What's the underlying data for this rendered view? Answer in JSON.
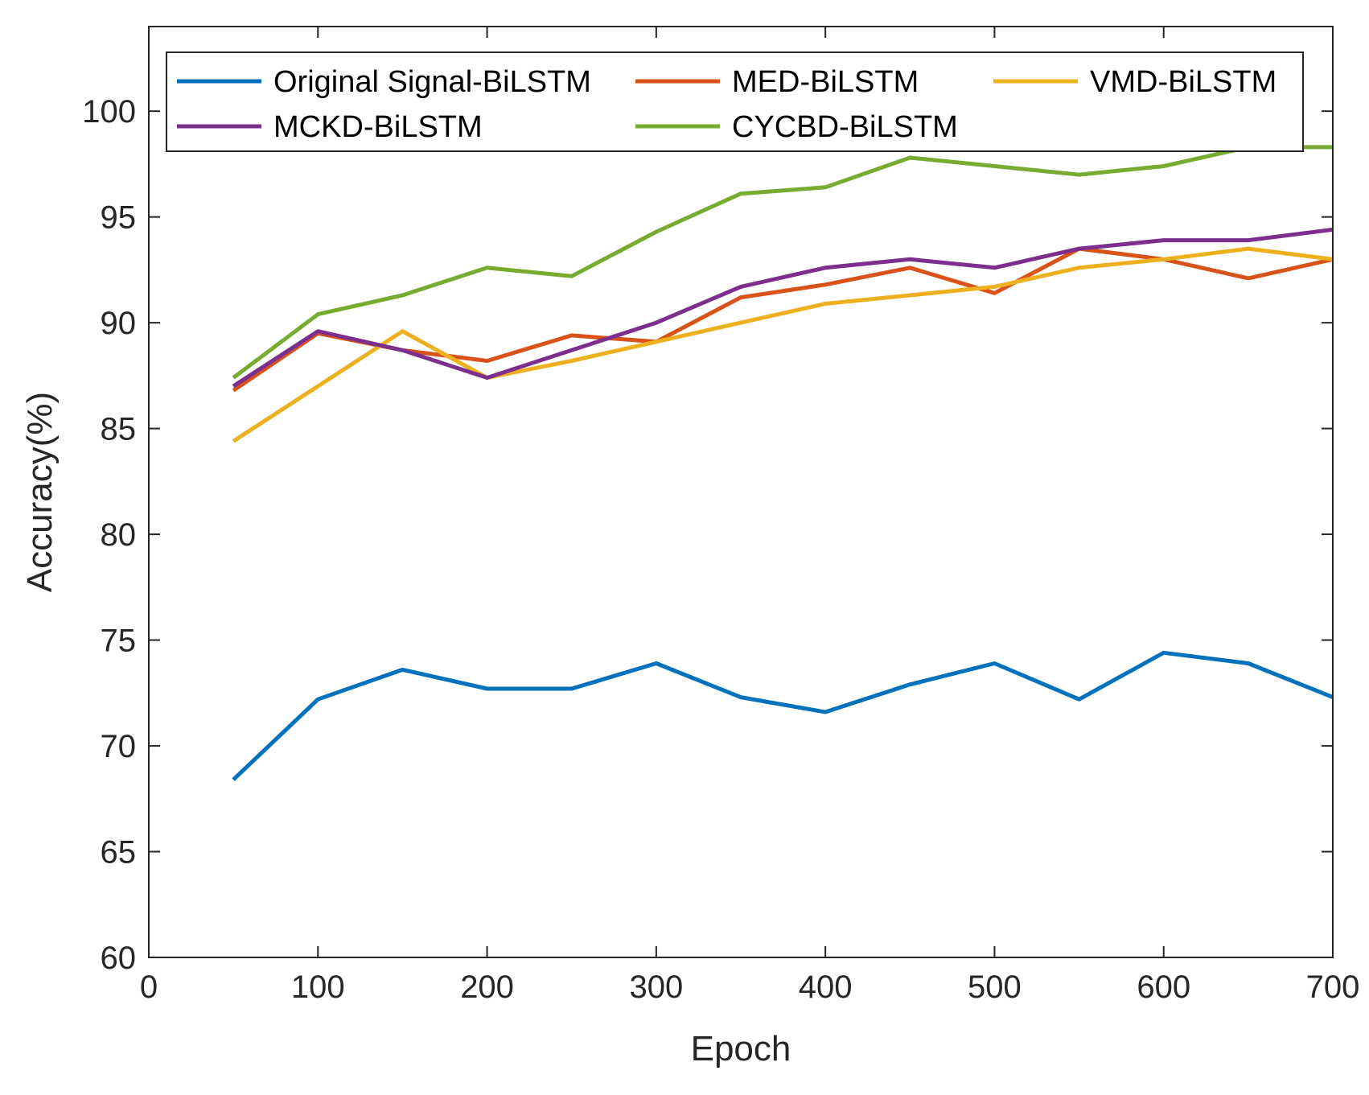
{
  "chart_data": {
    "type": "line",
    "title": "",
    "xlabel": "Epoch",
    "ylabel": "Accuracy(%)",
    "xlim": [
      0,
      700
    ],
    "ylim": [
      60,
      104
    ],
    "xticks": [
      0,
      100,
      200,
      300,
      400,
      500,
      600,
      700
    ],
    "yticks": [
      60,
      65,
      70,
      75,
      80,
      85,
      90,
      95,
      100
    ],
    "grid": false,
    "legend_position": "top",
    "x": [
      50,
      100,
      150,
      200,
      250,
      300,
      350,
      400,
      450,
      500,
      550,
      600,
      650,
      700
    ],
    "series": [
      {
        "name": "Original Signal-BiLSTM",
        "color": "#0072BD",
        "values": [
          68.4,
          72.2,
          73.6,
          72.7,
          72.7,
          73.9,
          72.3,
          71.6,
          72.9,
          73.9,
          72.2,
          74.4,
          73.9,
          72.3
        ]
      },
      {
        "name": "MED-BiLSTM",
        "color": "#D95319",
        "values": [
          86.8,
          89.5,
          88.7,
          88.2,
          89.4,
          89.1,
          91.2,
          91.8,
          92.6,
          91.4,
          93.5,
          93.0,
          92.1,
          93.0
        ]
      },
      {
        "name": "VMD-BiLSTM",
        "color": "#EDB120",
        "values": [
          84.4,
          87.0,
          89.6,
          87.4,
          88.2,
          89.1,
          90.0,
          90.9,
          91.3,
          91.7,
          92.6,
          93.0,
          93.5,
          93.0
        ]
      },
      {
        "name": "MCKD-BiLSTM",
        "color": "#7E2F8E",
        "values": [
          87.0,
          89.6,
          88.7,
          87.4,
          88.7,
          90.0,
          91.7,
          92.6,
          93.0,
          92.6,
          93.5,
          93.9,
          93.9,
          94.4
        ]
      },
      {
        "name": "CYCBD-BiLSTM",
        "color": "#77AC30",
        "values": [
          87.4,
          90.4,
          91.3,
          92.6,
          92.2,
          94.3,
          96.1,
          96.4,
          97.8,
          97.4,
          97.0,
          97.4,
          98.3,
          98.3
        ]
      }
    ]
  }
}
